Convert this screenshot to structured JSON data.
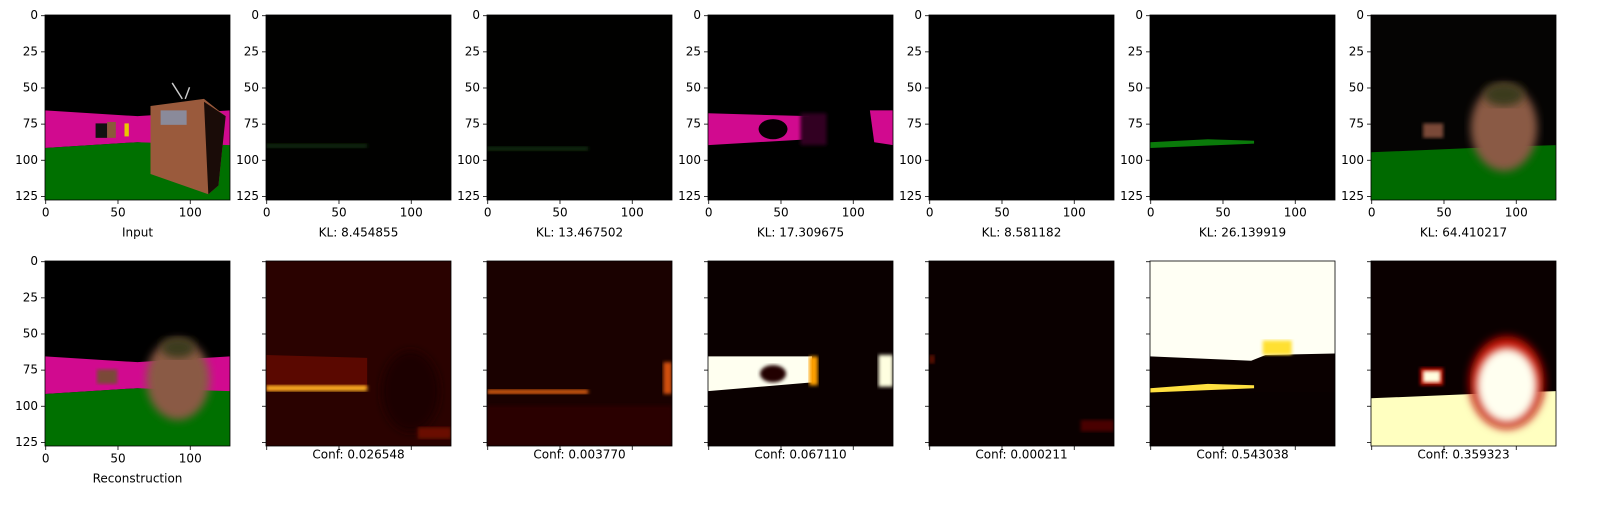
{
  "axes": {
    "xticks": [
      0,
      50,
      100
    ],
    "yticks": [
      0,
      25,
      50,
      75,
      100,
      125
    ],
    "xlim": [
      -0.5,
      127.5
    ],
    "ylim": [
      127.5,
      -0.5
    ]
  },
  "rows": [
    {
      "panels": [
        {
          "caption": "Input",
          "tick_labels": true
        },
        {
          "caption": "KL: 8.454855",
          "tick_labels": true
        },
        {
          "caption": "KL: 13.467502",
          "tick_labels": true
        },
        {
          "caption": "KL: 17.309675",
          "tick_labels": true
        },
        {
          "caption": "KL: 8.581182",
          "tick_labels": true
        },
        {
          "caption": "KL: 26.139919",
          "tick_labels": true
        },
        {
          "caption": "KL: 64.410217",
          "tick_labels": true
        }
      ]
    },
    {
      "panels": [
        {
          "caption": "Reconstruction",
          "tick_labels": true
        },
        {
          "caption": "Conf: 0.026548",
          "tick_labels": false
        },
        {
          "caption": "Conf: 0.003770",
          "tick_labels": false
        },
        {
          "caption": "Conf: 0.067110",
          "tick_labels": false
        },
        {
          "caption": "Conf: 0.000211",
          "tick_labels": false
        },
        {
          "caption": "Conf: 0.543038",
          "tick_labels": false
        },
        {
          "caption": "Conf: 0.359323",
          "tick_labels": false
        }
      ]
    }
  ]
}
